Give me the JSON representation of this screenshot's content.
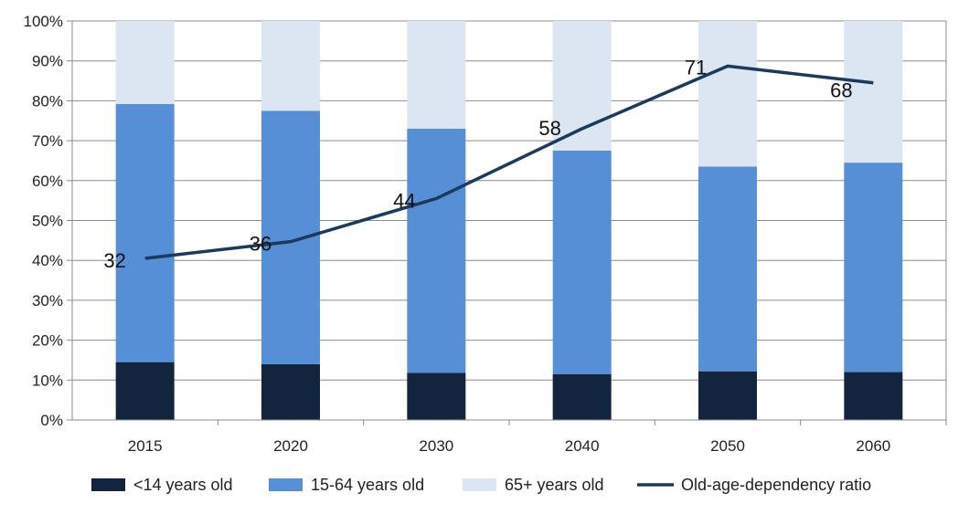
{
  "chart_data": {
    "type": "bar",
    "stacked": true,
    "percent_stacked": true,
    "categories": [
      "2015",
      "2020",
      "2030",
      "2040",
      "2050",
      "2060"
    ],
    "series": [
      {
        "name": "<14 years old",
        "values": [
          14.5,
          14.0,
          11.8,
          11.5,
          12.2,
          12.0
        ],
        "color": "#13243F"
      },
      {
        "name": "15-64 years old",
        "values": [
          64.7,
          63.5,
          61.2,
          56.0,
          51.3,
          52.5
        ],
        "color": "#568FD6"
      },
      {
        "name": "65+ years old",
        "values": [
          20.8,
          22.5,
          27.0,
          32.5,
          36.5,
          35.5
        ],
        "color": "#DCE6F2"
      }
    ],
    "line_series": {
      "name": "Old-age-dependency ratio",
      "values": [
        40.5,
        44.7,
        55.5,
        73.0,
        88.7,
        84.5
      ],
      "labels": [
        "32",
        "36",
        "44",
        "58",
        "71",
        "68"
      ],
      "color": "#1B3A5E"
    },
    "y_ticks": [
      "0%",
      "10%",
      "20%",
      "30%",
      "40%",
      "50%",
      "60%",
      "70%",
      "80%",
      "90%",
      "100%"
    ],
    "ylim": [
      0,
      100
    ],
    "grid": true,
    "legend_position": "bottom",
    "title": "",
    "xlabel": "",
    "ylabel": ""
  }
}
